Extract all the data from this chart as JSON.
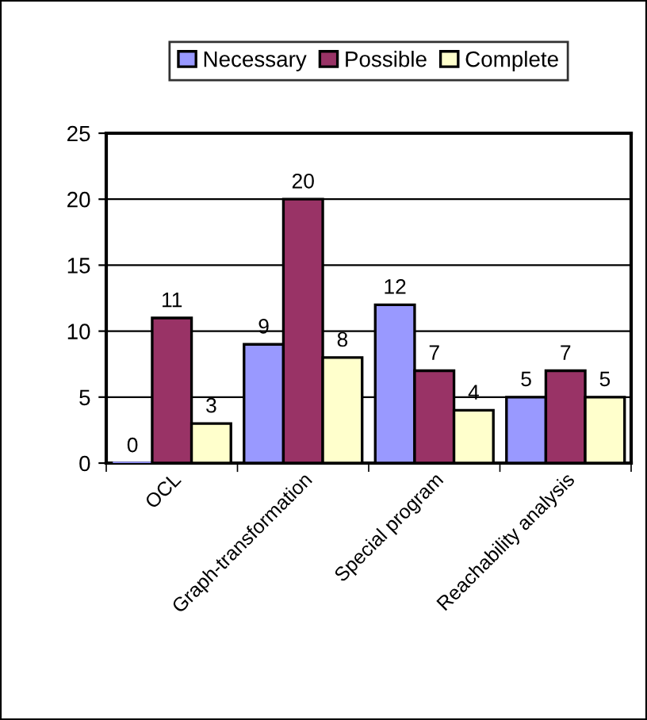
{
  "chart_data": {
    "type": "bar",
    "categories": [
      "OCL",
      "Graph-transformation",
      "Special program",
      "Reachability analysis"
    ],
    "series": [
      {
        "name": "Necessary",
        "color": "#9999ff",
        "values": [
          0,
          9,
          12,
          5
        ]
      },
      {
        "name": "Possible",
        "color": "#993366",
        "values": [
          11,
          20,
          7,
          7
        ]
      },
      {
        "name": "Complete",
        "color": "#ffffcc",
        "values": [
          3,
          8,
          4,
          5
        ]
      }
    ],
    "ylim": [
      0,
      25
    ],
    "yticks": [
      0,
      5,
      10,
      15,
      20,
      25
    ],
    "grid": "y",
    "legend": "top",
    "data_labels": true
  }
}
